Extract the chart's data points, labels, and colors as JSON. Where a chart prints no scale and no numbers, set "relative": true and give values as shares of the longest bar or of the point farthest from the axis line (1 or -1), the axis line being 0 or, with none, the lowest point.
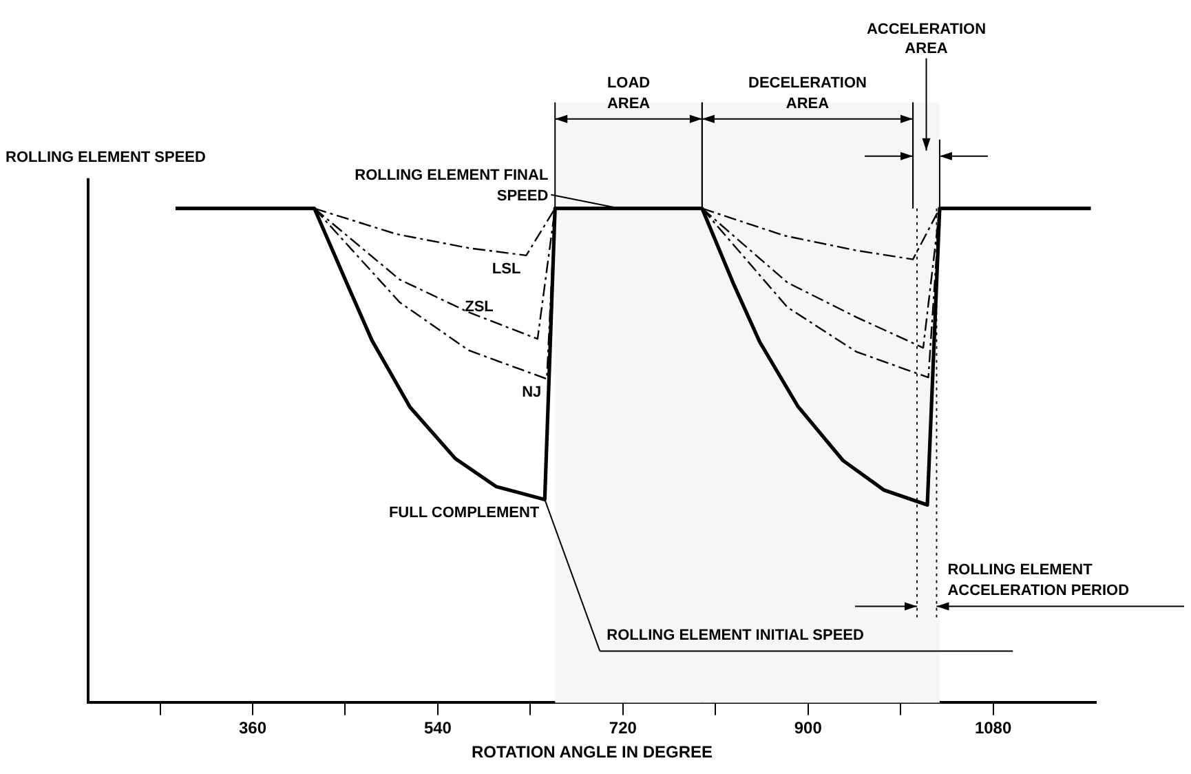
{
  "chart_data": {
    "type": "line",
    "relative": true,
    "xlabel": "ROTATION ANGLE IN DEGREE",
    "ylabel": "ROLLING ELEMENT SPEED",
    "xlim": [
      200,
      1180
    ],
    "xticks": [
      {
        "value": 270,
        "label": null
      },
      360,
      {
        "value": 450,
        "label": null
      },
      540,
      {
        "value": 630,
        "label": null
      },
      720,
      {
        "value": 810,
        "label": null
      },
      900,
      {
        "value": 990,
        "label": null
      },
      1080
    ],
    "grid": false,
    "legend": false,
    "marker": "none",
    "series": [
      {
        "name": "LSL",
        "color": "#000000",
        "line_style": "dashed",
        "x": [
          420,
          500,
          570,
          626,
          654,
          720,
          797,
          877,
          947,
          1002,
          1028
        ],
        "values": [
          1,
          0.948,
          0.92,
          0.905,
          1,
          null,
          1,
          0.945,
          0.915,
          0.897,
          1
        ]
      },
      {
        "name": "ZSL",
        "color": "#000000",
        "line_style": "dashed",
        "x": [
          420,
          503,
          570,
          637,
          654,
          720,
          797,
          880,
          947,
          1012,
          1028
        ],
        "values": [
          1,
          0.856,
          0.79,
          0.736,
          1,
          null,
          1,
          0.85,
          0.78,
          0.718,
          1
        ]
      },
      {
        "name": "NJ",
        "color": "#000000",
        "line_style": "dashed",
        "x": [
          420,
          503,
          570,
          646,
          654,
          720,
          797,
          880,
          947,
          1017,
          1028
        ],
        "values": [
          1,
          0.81,
          0.713,
          0.655,
          1,
          null,
          1,
          0.8,
          0.71,
          0.658,
          1
        ]
      },
      {
        "name": "FULL COMPLEMENT",
        "color": "#000000",
        "line_style": "solid",
        "x": [
          285,
          420,
          450,
          476,
          513,
          557,
          597,
          644,
          654,
          797,
          827,
          853,
          890,
          934,
          974,
          1016,
          1028,
          1175
        ],
        "values": [
          1,
          1,
          0.856,
          0.733,
          0.598,
          0.494,
          0.437,
          0.411,
          1,
          1,
          0.85,
          0.73,
          0.6,
          0.49,
          0.43,
          0.4,
          1,
          1
        ]
      }
    ],
    "bands": [
      {
        "axis": "x",
        "from": 654,
        "to": 797,
        "label": "LOAD AREA",
        "color": "#f6f6f6"
      },
      {
        "axis": "x",
        "from": 797,
        "to": 1002,
        "label": "DECELERATION AREA",
        "color": "#f6f6f6"
      },
      {
        "axis": "x",
        "from": 1002,
        "to": 1028,
        "label": "ACCELERATION AREA",
        "color": "#f6f6f6"
      }
    ],
    "ref_lines": [
      {
        "axis": "x",
        "value": 1006,
        "line_style": "dotted"
      },
      {
        "axis": "x",
        "value": 1025,
        "label": "ROLLING ELEMENT ACCELERATION PERIOD",
        "line_style": "dotted"
      }
    ],
    "annotations": [
      {
        "text": "ROLLING ELEMENT FINAL SPEED",
        "x": 717,
        "y": 1
      },
      {
        "text": "ROLLING ELEMENT INITIAL SPEED",
        "x": 644,
        "y": 0.411
      }
    ]
  }
}
